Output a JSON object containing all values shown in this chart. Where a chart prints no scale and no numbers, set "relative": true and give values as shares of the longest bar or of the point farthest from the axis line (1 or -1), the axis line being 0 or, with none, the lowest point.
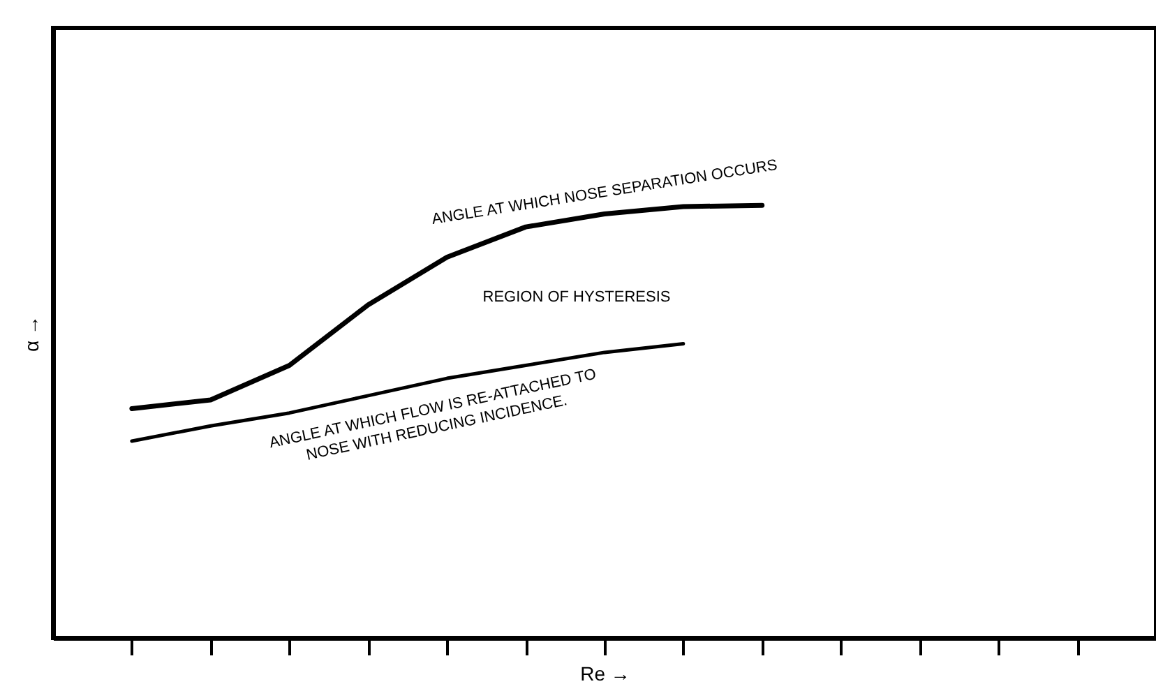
{
  "chart_data": {
    "type": "line",
    "relative": true,
    "xlabel": "Re →",
    "ylabel": "α →",
    "tick_labels": false,
    "grid": false,
    "categories": [
      null,
      null,
      null,
      null,
      null,
      null,
      null,
      null,
      null,
      null,
      null,
      null,
      null
    ],
    "series": [
      {
        "color": "#000000",
        "values": [
          0.53,
          0.55,
          0.63,
          0.77,
          0.88,
          0.95,
          0.98,
          0.997,
          1,
          null,
          null,
          null,
          null
        ]
      },
      {
        "color": "#000000",
        "values": [
          0.455,
          0.49,
          0.52,
          0.56,
          0.6,
          0.63,
          0.66,
          0.68,
          null,
          null,
          null,
          null,
          null
        ]
      }
    ],
    "annotations": [
      "ANGLE AT WHICH NOSE SEPARATION OCCURS",
      "REGION OF HYSTERESIS",
      "ANGLE AT WHICH FLOW IS RE-ATTACHED TO NOSE WITH REDUCING INCIDENCE."
    ]
  }
}
